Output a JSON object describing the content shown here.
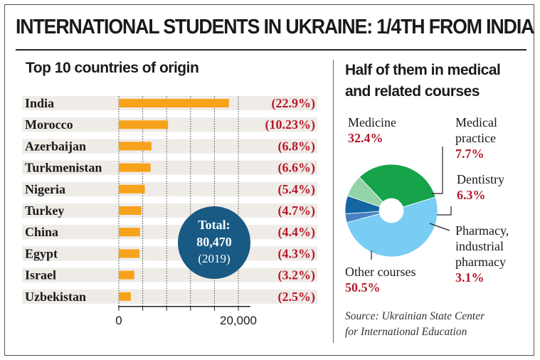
{
  "header": {
    "title": "INTERNATIONAL STUDENTS IN UKRAINE: 1/4TH FROM INDIA"
  },
  "source": {
    "line1": "Source: Ukrainian State Center",
    "line2": "for International Education"
  },
  "total": {
    "label": "Total:",
    "value": "80,470",
    "year": "(2019)"
  },
  "colors": {
    "bar": "#f7a21b",
    "row_band": "#efebe7",
    "percent_text": "#b5192a",
    "total_circle": "#185a84",
    "medicine": "#16a34a",
    "medical_practice": "#92d4a5",
    "dentistry": "#1466a3",
    "pharmacy": "#4a81c0",
    "other": "#79cdf5"
  },
  "chart_data": [
    {
      "type": "bar",
      "title": "Top 10 countries of origin",
      "orientation": "horizontal",
      "categories": [
        "India",
        "Morocco",
        "Azerbaijan",
        "Turkmenistan",
        "Nigeria",
        "Turkey",
        "China",
        "Egypt",
        "Israel",
        "Uzbekistan"
      ],
      "values": [
        18430,
        8230,
        5470,
        5310,
        4350,
        3780,
        3540,
        3460,
        2580,
        2010
      ],
      "data_labels": [
        "(22.9%)",
        "(10.23%)",
        "(6.8%)",
        "(6.6%)",
        "(5.4%)",
        "(4.7%)",
        "(4.4%)",
        "(4.3%)",
        "(3.2%)",
        "(2.5%)"
      ],
      "xlim": [
        0,
        22000
      ],
      "x_ticks": [
        "0",
        "20,000"
      ],
      "x_tick_values": [
        0,
        20000
      ],
      "minor_tick_step": 4000,
      "grid": false
    },
    {
      "type": "pie",
      "title": "Half of them in medical and related courses",
      "donut": true,
      "slices": [
        {
          "label": "Medicine",
          "value": 32.4,
          "value_text": "32.4%",
          "color_key": "medicine"
        },
        {
          "label": "Medical practice",
          "value": 7.7,
          "value_text": "7.7%",
          "color_key": "medical_practice"
        },
        {
          "label": "Dentistry",
          "value": 6.3,
          "value_text": "6.3%",
          "color_key": "dentistry"
        },
        {
          "label": "Pharmacy, industrial pharmacy",
          "value": 3.1,
          "value_text": "3.1%",
          "color_key": "pharmacy"
        },
        {
          "label": "Other courses",
          "value": 50.5,
          "value_text": "50.5%",
          "color_key": "other"
        }
      ],
      "label_lines": {
        "Medicine": [
          "Medicine"
        ],
        "Medical practice": [
          "Medical",
          "practice"
        ],
        "Dentistry": [
          "Dentistry"
        ],
        "Pharmacy, industrial pharmacy": [
          "Pharmacy,",
          "industrial",
          "pharmacy"
        ],
        "Other courses": [
          "Other courses"
        ]
      }
    }
  ]
}
